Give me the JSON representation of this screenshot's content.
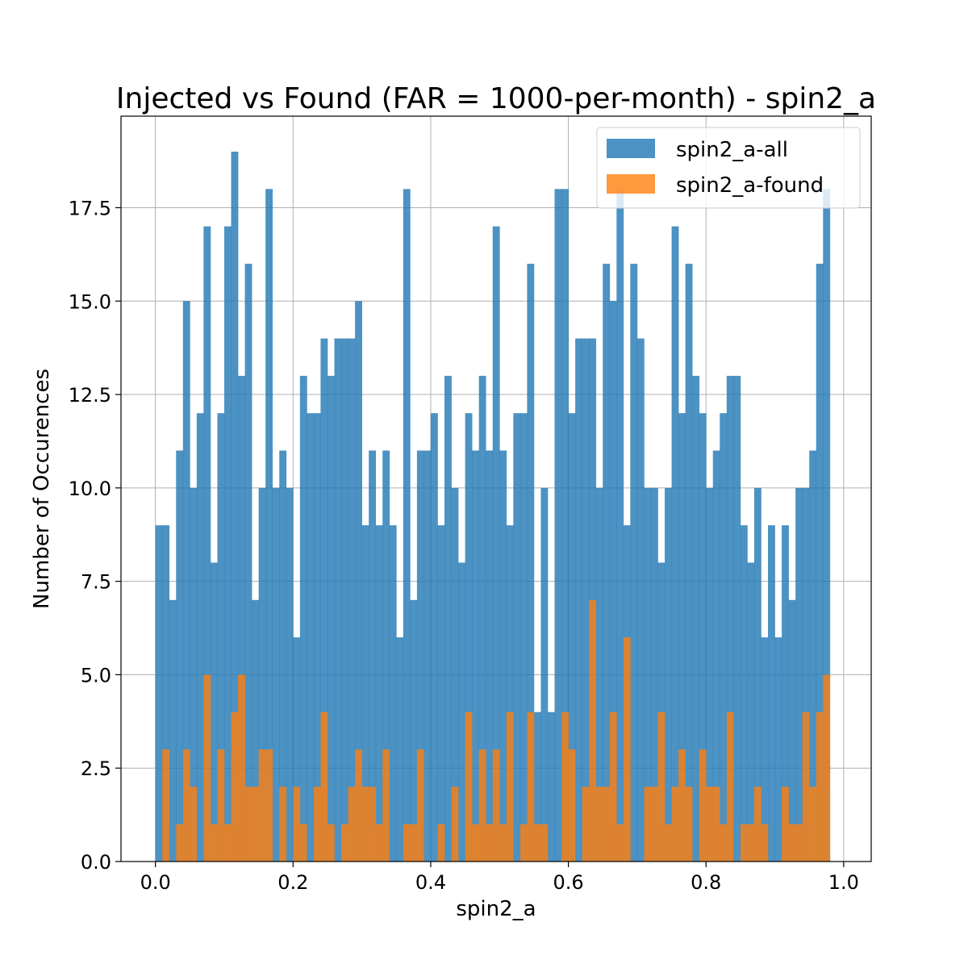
{
  "chart_data": {
    "type": "bar",
    "title": "Injected vs Found (FAR = 1000-per-month) - spin2_a",
    "xlabel": "spin2_a",
    "ylabel": "Number of Occurences",
    "xlim": [
      -0.05,
      1.04
    ],
    "ylim": [
      0,
      19.95
    ],
    "bin_start": 0.0,
    "bin_width": 0.01,
    "xticks": [
      0.0,
      0.2,
      0.4,
      0.6,
      0.8,
      1.0
    ],
    "xtick_labels": [
      "0.0",
      "0.2",
      "0.4",
      "0.6",
      "0.8",
      "1.0"
    ],
    "yticks": [
      0.0,
      2.5,
      5.0,
      7.5,
      10.0,
      12.5,
      15.0,
      17.5
    ],
    "ytick_labels": [
      "0.0",
      "2.5",
      "5.0",
      "7.5",
      "10.0",
      "12.5",
      "15.0",
      "17.5"
    ],
    "grid": true,
    "legend_position": "top-right",
    "series": [
      {
        "name": "spin2_a-all",
        "color": "#1f77b4",
        "values": [
          9,
          9,
          7,
          11,
          15,
          10,
          12,
          17,
          8,
          12,
          17,
          19,
          13,
          16,
          7,
          10,
          18,
          10,
          11,
          10,
          6,
          13,
          12,
          12,
          14,
          13,
          14,
          14,
          14,
          15,
          9,
          11,
          9,
          11,
          9,
          6,
          18,
          7,
          11,
          11,
          12,
          9,
          13,
          10,
          8,
          12,
          11,
          13,
          11,
          17,
          11,
          9,
          12,
          12,
          16,
          4,
          10,
          4,
          18,
          18,
          12,
          14,
          14,
          14,
          10,
          16,
          15,
          18,
          9,
          16,
          14,
          10,
          10,
          8,
          10,
          17,
          12,
          16,
          13,
          12,
          10,
          11,
          12,
          13,
          13,
          9,
          8,
          10,
          6,
          9,
          6,
          9,
          7,
          10,
          10,
          11,
          16,
          18
        ]
      },
      {
        "name": "spin2_a-found",
        "color": "#ff7f0e",
        "values": [
          0,
          3,
          0,
          1,
          3,
          2,
          0,
          5,
          1,
          3,
          1,
          4,
          5,
          2,
          2,
          3,
          3,
          0,
          2,
          0,
          2,
          1,
          0,
          2,
          4,
          1,
          0,
          1,
          2,
          3,
          2,
          2,
          1,
          3,
          0,
          0,
          1,
          1,
          3,
          0,
          0,
          1,
          0,
          2,
          0,
          4,
          1,
          3,
          1,
          3,
          1,
          4,
          0,
          1,
          4,
          1,
          1,
          0,
          0,
          4,
          3,
          0,
          2,
          7,
          2,
          2,
          4,
          1,
          6,
          0,
          0,
          2,
          2,
          4,
          1,
          2,
          3,
          2,
          0,
          3,
          2,
          2,
          1,
          4,
          0,
          1,
          1,
          2,
          1,
          0,
          0,
          2,
          1,
          1,
          4,
          2,
          4,
          5
        ]
      }
    ]
  }
}
